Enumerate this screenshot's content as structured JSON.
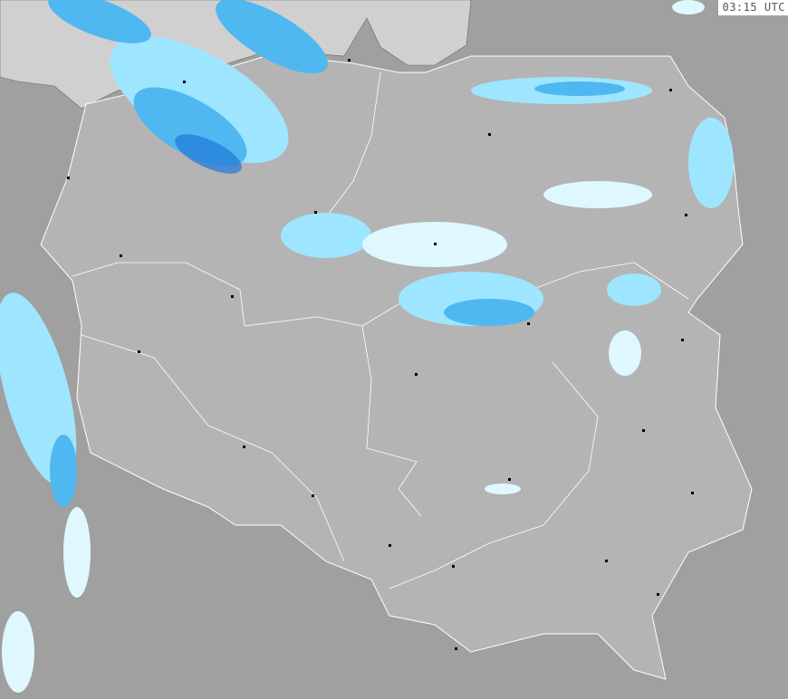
{
  "timestamp": "03:15 UTC",
  "colors": {
    "land_outside": "#a0a0a0",
    "land_country": "#b4b4b4",
    "sea": "#d0d0d0",
    "border": "#ffffff",
    "precip_light": "#dff8ff",
    "precip_mid": "#9ee6ff",
    "precip_med": "#4fb8f0",
    "precip_heavy": "#1f78d8"
  }
}
